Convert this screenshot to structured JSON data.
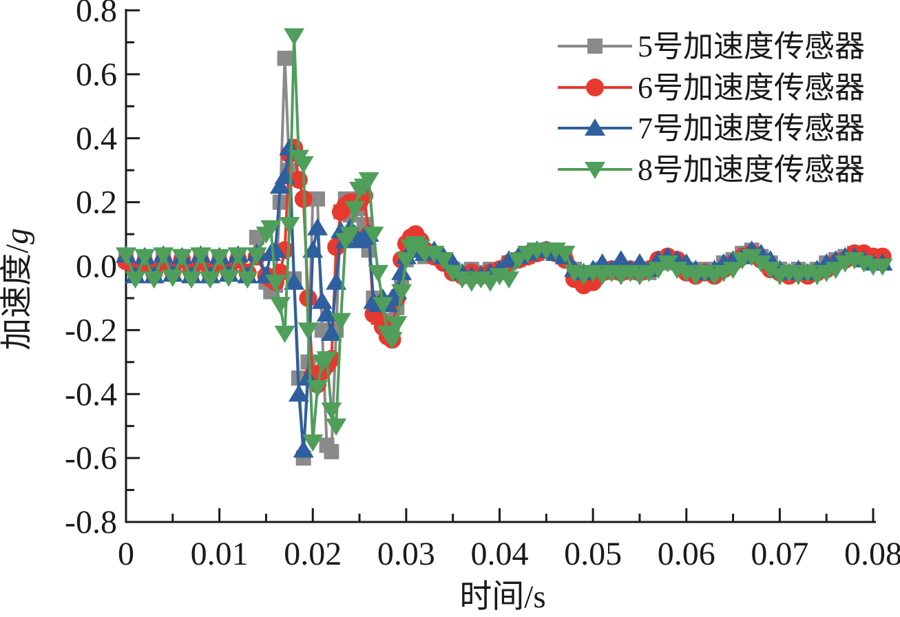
{
  "figure": {
    "background": "#ffffff",
    "axis_color": "#1a1a1a"
  },
  "chart_data": {
    "type": "line",
    "title": "",
    "xlabel": "时间/s",
    "ylabel": "加速度/g",
    "ylabel_prefix": "加速度/",
    "ylabel_italic": "g",
    "xlim": [
      0,
      0.08
    ],
    "ylim": [
      -0.8,
      0.8
    ],
    "grid": "off",
    "legend_position": "top-right",
    "x_tick_values": [
      0,
      0.01,
      0.02,
      0.03,
      0.04,
      0.05,
      0.06,
      0.07,
      0.08
    ],
    "x_tick_labels": [
      "0",
      "0.01",
      "0.02",
      "0.03",
      "0.04",
      "0.05",
      "0.06",
      "0.07",
      "0.08"
    ],
    "x_minor_tick_values": [
      0.005,
      0.015,
      0.025,
      0.035,
      0.045,
      0.055,
      0.065,
      0.075
    ],
    "y_tick_values": [
      0.8,
      0.6,
      0.4,
      0.2,
      0.0,
      -0.2,
      -0.4,
      -0.6,
      -0.8
    ],
    "y_tick_labels": [
      "0.8",
      "0.6",
      "0.4",
      "0.2",
      "0.0",
      "-0.2",
      "-0.4",
      "-0.6",
      "-0.8"
    ],
    "y_minor_tick_values": [
      0.7,
      0.5,
      0.3,
      0.1,
      -0.1,
      -0.3,
      -0.5,
      -0.7
    ],
    "x": [
      0,
      0.001,
      0.002,
      0.003,
      0.004,
      0.005,
      0.006,
      0.007,
      0.008,
      0.009,
      0.01,
      0.011,
      0.012,
      0.013,
      0.014,
      0.015,
      0.0155,
      0.016,
      0.0165,
      0.017,
      0.0175,
      0.018,
      0.0185,
      0.019,
      0.0195,
      0.02,
      0.0205,
      0.021,
      0.0215,
      0.022,
      0.0225,
      0.023,
      0.0235,
      0.024,
      0.0245,
      0.025,
      0.0255,
      0.026,
      0.0265,
      0.027,
      0.0275,
      0.028,
      0.0285,
      0.029,
      0.0295,
      0.03,
      0.0305,
      0.031,
      0.0315,
      0.032,
      0.033,
      0.034,
      0.035,
      0.036,
      0.037,
      0.038,
      0.039,
      0.04,
      0.041,
      0.042,
      0.043,
      0.044,
      0.045,
      0.046,
      0.047,
      0.048,
      0.049,
      0.05,
      0.051,
      0.052,
      0.053,
      0.054,
      0.055,
      0.056,
      0.057,
      0.058,
      0.059,
      0.06,
      0.061,
      0.062,
      0.063,
      0.064,
      0.065,
      0.066,
      0.067,
      0.068,
      0.069,
      0.07,
      0.071,
      0.072,
      0.073,
      0.074,
      0.075,
      0.076,
      0.077,
      0.078,
      0.079,
      0.08,
      0.081
    ],
    "series": [
      {
        "id": "sensor-5",
        "name": "5号加速度传感器",
        "color": "#8a8a8a",
        "marker": "square",
        "values": [
          0.02,
          -0.02,
          0.02,
          -0.03,
          0.02,
          -0.02,
          0.03,
          -0.02,
          0.02,
          -0.03,
          0.02,
          -0.02,
          0.03,
          -0.03,
          0.09,
          -0.05,
          -0.08,
          -0.06,
          0.2,
          0.65,
          0.3,
          -0.04,
          -0.35,
          -0.6,
          -0.3,
          0.21,
          0.21,
          -0.2,
          -0.56,
          -0.58,
          -0.2,
          0.17,
          0.21,
          0.16,
          0.21,
          0.18,
          0.13,
          0.05,
          -0.1,
          -0.16,
          -0.18,
          -0.17,
          -0.19,
          -0.13,
          -0.05,
          0.02,
          0.05,
          0.06,
          0.05,
          0.03,
          0.04,
          0.02,
          -0.01,
          -0.02,
          -0.01,
          -0.02,
          -0.01,
          -0.02,
          0.01,
          0.02,
          0.03,
          0.04,
          0.05,
          0.04,
          0.03,
          -0.01,
          -0.03,
          -0.02,
          -0.01,
          -0.02,
          -0.01,
          -0.02,
          -0.01,
          -0.02,
          0.01,
          0.02,
          0.01,
          -0.01,
          -0.02,
          -0.01,
          -0.02,
          0.01,
          0.02,
          0.04,
          0.05,
          0.03,
          0.01,
          -0.01,
          -0.02,
          -0.01,
          -0.02,
          -0.01,
          0.01,
          0.02,
          0.03,
          0.04,
          0.03,
          0.03,
          0.02
        ]
      },
      {
        "id": "sensor-6",
        "name": "6号加速度传感器",
        "color": "#e8392f",
        "marker": "circle",
        "values": [
          0.015,
          -0.015,
          0.01,
          -0.02,
          0.015,
          -0.015,
          0.02,
          -0.015,
          0.015,
          -0.02,
          0.01,
          -0.015,
          0.02,
          -0.02,
          0.03,
          -0.03,
          -0.04,
          -0.05,
          -0.02,
          0.05,
          0.35,
          0.37,
          0.27,
          0.21,
          -0.1,
          -0.34,
          -0.37,
          -0.33,
          -0.31,
          -0.29,
          0.06,
          0.17,
          0.19,
          0.2,
          0.2,
          0.2,
          0.22,
          0.1,
          -0.15,
          -0.16,
          -0.19,
          -0.22,
          -0.23,
          -0.1,
          0.02,
          0.07,
          0.09,
          0.1,
          0.08,
          0.05,
          0.03,
          0.01,
          -0.02,
          -0.03,
          -0.02,
          -0.03,
          -0.02,
          -0.01,
          0.01,
          0.02,
          0.03,
          0.04,
          0.05,
          0.04,
          0.02,
          -0.04,
          -0.06,
          -0.05,
          -0.02,
          -0.01,
          -0.02,
          -0.01,
          -0.02,
          -0.01,
          0.02,
          0.03,
          0.02,
          -0.02,
          -0.03,
          -0.02,
          -0.03,
          -0.01,
          0.01,
          0.03,
          0.04,
          0.02,
          -0.01,
          -0.02,
          -0.03,
          -0.02,
          -0.03,
          -0.02,
          -0.01,
          0.01,
          0.02,
          0.04,
          0.04,
          0.03,
          0.03
        ]
      },
      {
        "id": "sensor-7",
        "name": "7号加速度传感器",
        "color": "#2e5f9e",
        "marker": "triangle-up",
        "values": [
          0.035,
          -0.03,
          0.03,
          -0.03,
          0.035,
          -0.025,
          0.03,
          -0.03,
          0.035,
          -0.03,
          0.03,
          -0.025,
          0.035,
          -0.03,
          0.04,
          -0.03,
          0.04,
          0.05,
          0.25,
          0.28,
          0.37,
          -0.05,
          -0.4,
          -0.575,
          -0.35,
          0.05,
          0.12,
          -0.11,
          -0.15,
          -0.21,
          -0.05,
          0.11,
          0.08,
          0.12,
          0.1,
          0.08,
          0.09,
          0.1,
          -0.11,
          -0.12,
          -0.1,
          -0.12,
          -0.1,
          -0.08,
          -0.02,
          0.03,
          0.05,
          0.06,
          0.05,
          0.04,
          0.05,
          0.03,
          0.01,
          -0.02,
          -0.03,
          -0.03,
          -0.02,
          -0.01,
          0.02,
          0.03,
          0.04,
          0.05,
          0.05,
          0.04,
          0.03,
          -0.01,
          -0.02,
          -0.01,
          0.01,
          -0.01,
          0.02,
          -0.01,
          0.01,
          -0.01,
          0.02,
          0.03,
          0.02,
          0.01,
          -0.01,
          -0.02,
          -0.01,
          0.01,
          0.02,
          0.03,
          0.05,
          0.04,
          0.02,
          -0.01,
          -0.02,
          -0.01,
          -0.02,
          -0.01,
          0.01,
          0.02,
          0.03,
          0.03,
          0.02,
          0.01,
          0.01
        ]
      },
      {
        "id": "sensor-8",
        "name": "8号加速度传感器",
        "color": "#4f9e5a",
        "marker": "triangle-down",
        "values": [
          0.035,
          -0.04,
          0.03,
          -0.04,
          0.035,
          -0.035,
          0.03,
          -0.04,
          0.035,
          -0.04,
          0.03,
          -0.035,
          0.035,
          -0.04,
          0.035,
          0.1,
          0.12,
          -0.05,
          -0.12,
          -0.21,
          0.13,
          0.72,
          0.34,
          0.32,
          -0.2,
          -0.55,
          -0.38,
          -0.3,
          -0.29,
          -0.45,
          -0.5,
          -0.17,
          0.08,
          0.1,
          0.18,
          0.24,
          0.25,
          0.27,
          0.1,
          -0.02,
          -0.12,
          -0.21,
          -0.23,
          -0.18,
          -0.08,
          0.02,
          0.06,
          0.07,
          0.06,
          0.04,
          0.04,
          0.02,
          -0.02,
          -0.04,
          -0.05,
          -0.04,
          -0.05,
          -0.03,
          -0.04,
          0.02,
          0.04,
          0.05,
          0.05,
          0.05,
          0.04,
          -0.02,
          -0.03,
          -0.02,
          -0.03,
          -0.02,
          -0.03,
          -0.02,
          -0.03,
          -0.02,
          -0.01,
          0.01,
          -0.01,
          -0.02,
          -0.03,
          -0.02,
          -0.03,
          -0.02,
          -0.01,
          0.02,
          0.03,
          0.01,
          -0.01,
          -0.03,
          -0.02,
          -0.03,
          -0.02,
          -0.03,
          -0.02,
          -0.01,
          0.01,
          0.02,
          0.01,
          0,
          0
        ]
      }
    ]
  }
}
